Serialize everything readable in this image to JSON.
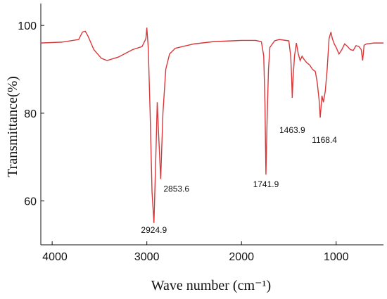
{
  "chart_data": {
    "type": "line",
    "xlabel": "Wave number (cm⁻¹)",
    "ylabel": "Transmittance(%)",
    "xlim": [
      4120,
      500
    ],
    "ylim": [
      50,
      105
    ],
    "xticks": [
      4000,
      3000,
      2000,
      1000
    ],
    "yticks": [
      60,
      80,
      100
    ],
    "series": [
      {
        "color": "#d9383a",
        "x": [
          4120,
          3900,
          3720,
          3680,
          3650,
          3620,
          3560,
          3480,
          3420,
          3300,
          3150,
          3050,
          3010,
          3000,
          2985,
          2965,
          2945,
          2924.9,
          2905,
          2890,
          2875,
          2853.6,
          2830,
          2800,
          2760,
          2700,
          2600,
          2500,
          2300,
          2100,
          2000,
          1850,
          1790,
          1765,
          1752,
          1741.9,
          1730,
          1715,
          1700,
          1650,
          1600,
          1500,
          1480,
          1470,
          1463.9,
          1455,
          1440,
          1420,
          1400,
          1380,
          1360,
          1340,
          1310,
          1280,
          1250,
          1220,
          1200,
          1180,
          1168.4,
          1150,
          1135,
          1115,
          1095,
          1075,
          1055,
          1040,
          1020,
          1000,
          970,
          940,
          910,
          880,
          850,
          820,
          790,
          760,
          735,
          720,
          705,
          680,
          600,
          500
        ],
        "values": [
          96,
          96.2,
          96.8,
          98.5,
          98.7,
          97.5,
          94.5,
          92.5,
          92,
          92.8,
          94.5,
          95.2,
          97,
          99.5,
          95,
          80,
          62,
          55,
          70,
          82.5,
          75,
          65,
          80,
          90,
          93.5,
          94.8,
          95.3,
          95.8,
          96.3,
          96.5,
          96.6,
          96.6,
          96.3,
          93,
          82,
          66,
          78,
          90,
          95,
          96.5,
          96.8,
          96.5,
          93,
          88,
          83.5,
          88,
          93,
          96,
          93.5,
          92,
          93,
          92.3,
          91.5,
          91,
          90,
          89.5,
          87,
          83,
          79,
          84,
          82.5,
          85,
          90,
          97,
          98.5,
          97,
          95.8,
          95,
          93.5,
          94.5,
          95.8,
          95.2,
          94.5,
          94.3,
          95.4,
          95.2,
          94.5,
          92,
          95.5,
          95.8,
          96,
          96
        ]
      }
    ],
    "annotations": [
      {
        "x": 2924.9,
        "y": 55,
        "label": "2924.9"
      },
      {
        "x": 2853.6,
        "y": 65,
        "label": "2853.6"
      },
      {
        "x": 1741.9,
        "y": 66,
        "label": "1741.9"
      },
      {
        "x": 1463.9,
        "y": 83.5,
        "label": "1463.9"
      },
      {
        "x": 1168.4,
        "y": 79,
        "label": "1168.4"
      }
    ]
  }
}
